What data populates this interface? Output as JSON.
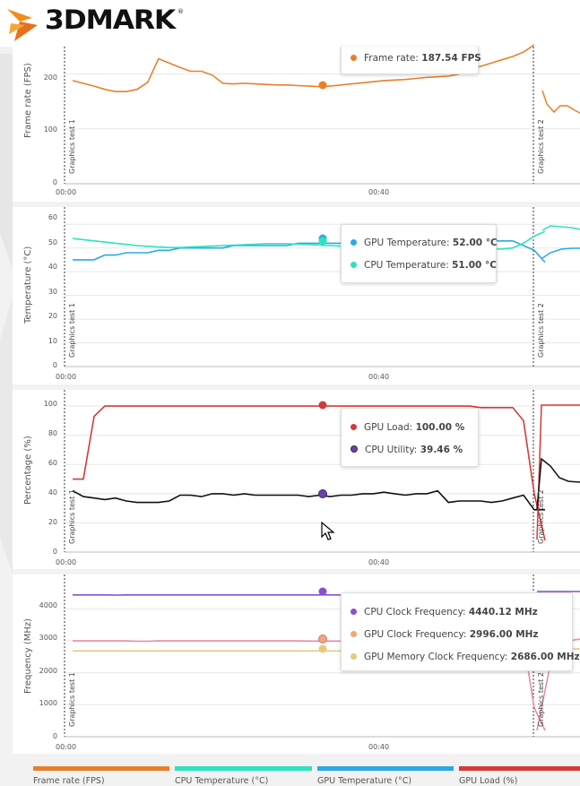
{
  "app": {
    "logo": "3DMARK",
    "registered": "®"
  },
  "colors": {
    "frame_rate": "#e8802a",
    "cpu_temp": "#2de2c0",
    "gpu_temp": "#29a9e8",
    "gpu_load": "#d23a3a",
    "cpu_util": "#111111",
    "cpu_clock": "#8a4fd0",
    "gpu_clock": "#e88aa0",
    "gpu_mem_clock": "#e7c97a"
  },
  "markers": {
    "test1": "Graphics test 1",
    "test2": "Graphics test 2"
  },
  "x_ticks": [
    "00:00",
    "00:40"
  ],
  "panels": {
    "frame_rate": {
      "ylabel": "Frame rate (FPS)",
      "yticks": [
        "200",
        "100",
        "0"
      ],
      "tooltip": [
        {
          "label": "Frame rate:",
          "value": "187.54 FPS"
        }
      ]
    },
    "temperature": {
      "ylabel": "Temperature (°C)",
      "yticks": [
        "60",
        "50",
        "40",
        "30",
        "20",
        "10",
        "0"
      ],
      "tooltip": [
        {
          "label": "GPU Temperature:",
          "value": "52.00 °C"
        },
        {
          "label": "CPU Temperature:",
          "value": "51.00 °C"
        }
      ]
    },
    "percentage": {
      "ylabel": "Percentage (%)",
      "yticks": [
        "100",
        "80",
        "60",
        "40",
        "20",
        "0"
      ],
      "tooltip": [
        {
          "label": "GPU Load:",
          "value": "100.00 %"
        },
        {
          "label": "CPU Utility:",
          "value": "39.46 %"
        }
      ]
    },
    "frequency": {
      "ylabel": "Frequency (MHz)",
      "yticks": [
        "4000",
        "3000",
        "2000",
        "1000",
        "0"
      ],
      "tooltip": [
        {
          "label": "CPU Clock Frequency:",
          "value": "4440.12 MHz"
        },
        {
          "label": "GPU Clock Frequency:",
          "value": "2996.00 MHz"
        },
        {
          "label": "GPU Memory Clock Frequency:",
          "value": "2686.00 MHz"
        }
      ]
    }
  },
  "legend": [
    {
      "label": "Frame rate (FPS)",
      "color": "#e8802a"
    },
    {
      "label": "CPU Temperature (°C)",
      "color": "#2de2c0"
    },
    {
      "label": "GPU Temperature (°C)",
      "color": "#29a9e8"
    },
    {
      "label": "GPU Load (%)",
      "color": "#d23a3a"
    }
  ],
  "chart_data": [
    {
      "type": "line",
      "ylabel": "Frame rate (FPS)",
      "ylim": [
        0,
        250
      ],
      "series": [
        {
          "name": "Frame rate",
          "values": [
            188,
            183,
            178,
            172,
            168,
            168,
            172,
            185,
            228,
            220,
            212,
            205,
            205,
            198,
            183,
            182,
            183,
            182,
            181,
            180,
            180,
            179,
            178,
            177,
            178,
            180,
            182,
            184,
            186,
            188,
            189,
            190,
            192,
            194,
            195,
            196,
            200,
            208,
            214,
            220,
            226,
            232,
            240,
            255
          ]
        }
      ]
    },
    {
      "type": "line",
      "ylabel": "Temperature (°C)",
      "ylim": [
        0,
        65
      ],
      "series": [
        {
          "name": "GPU Temperature",
          "values": [
            45,
            45,
            45,
            47,
            47,
            48,
            48,
            48,
            49,
            49,
            50,
            50,
            50,
            50,
            50,
            51,
            51,
            51,
            51,
            51,
            51,
            52,
            52,
            52,
            52,
            52,
            52,
            52,
            52,
            52,
            52,
            53,
            53,
            53,
            53,
            53,
            53,
            53,
            53,
            53,
            53,
            53,
            51,
            49,
            44
          ]
        },
        {
          "name": "CPU Temperature",
          "values": [
            54,
            53.5,
            53,
            52.5,
            52,
            51.5,
            51,
            50.7,
            50.4,
            50.2,
            50.2,
            50.4,
            50.6,
            50.8,
            51,
            51.2,
            51.4,
            51.6,
            51.8,
            51.8,
            51.8,
            51.6,
            51.4,
            51.2,
            51,
            50.8,
            50.6,
            50.4,
            50.2,
            50,
            50,
            49.8,
            49.6,
            49.5,
            49.5,
            49.5,
            49.5,
            49.5,
            49.5,
            49.5,
            49.6,
            50,
            52,
            55,
            57
          ]
        }
      ]
    },
    {
      "type": "line",
      "ylabel": "Percentage (%)",
      "ylim": [
        0,
        105
      ],
      "series": [
        {
          "name": "GPU Load",
          "values": [
            50,
            50,
            93,
            100,
            100,
            100,
            100,
            100,
            100,
            100,
            100,
            100,
            100,
            100,
            100,
            100,
            100,
            100,
            100,
            100,
            100,
            100,
            100,
            100,
            100,
            100,
            100,
            100,
            100,
            100,
            100,
            100,
            100,
            100,
            100,
            100,
            100,
            100,
            99,
            99,
            99,
            99,
            90,
            40,
            8
          ]
        },
        {
          "name": "CPU Utility",
          "values": [
            42,
            38,
            37,
            36,
            37,
            35,
            34,
            34,
            34,
            35,
            39,
            39,
            38,
            40,
            40,
            39,
            40,
            39,
            39,
            39,
            39,
            39,
            38,
            39,
            38,
            39,
            39,
            40,
            40,
            41,
            40,
            39,
            40,
            40,
            42,
            34,
            35,
            35,
            35,
            34,
            35,
            37,
            39,
            29,
            29
          ]
        }
      ]
    },
    {
      "type": "line",
      "ylabel": "Frequency (MHz)",
      "ylim": [
        0,
        4800
      ],
      "series": [
        {
          "name": "CPU Clock Frequency",
          "values": [
            4440,
            4440,
            4440,
            4440,
            4435,
            4440,
            4440,
            4440,
            4440,
            4440,
            4440,
            4440,
            4440,
            4440,
            4440,
            4440,
            4440,
            4440,
            4440,
            4440,
            4440,
            4440,
            4440,
            4440,
            4440,
            4440,
            4440,
            4440,
            4440,
            4440,
            4440,
            4440,
            4440,
            4440,
            4440,
            4440,
            4440,
            4440,
            4440,
            4440,
            4440,
            4440,
            4440,
            4440,
            4440
          ]
        },
        {
          "name": "GPU Clock Frequency",
          "values": [
            3000,
            3000,
            3000,
            3000,
            3000,
            3000,
            2990,
            2990,
            3000,
            3000,
            3000,
            3000,
            3000,
            3000,
            3000,
            3000,
            3000,
            3000,
            3000,
            3000,
            3000,
            3000,
            2996,
            2996,
            2996,
            2996,
            2996,
            2996,
            2996,
            2996,
            2996,
            2996,
            2996,
            2996,
            2996,
            2996,
            2996,
            2996,
            2996,
            2996,
            2996,
            2996,
            2996,
            900,
            200
          ]
        },
        {
          "name": "GPU Memory Clock Frequency",
          "values": [
            2686,
            2686,
            2686,
            2686,
            2686,
            2686,
            2686,
            2686,
            2686,
            2686,
            2686,
            2686,
            2686,
            2686,
            2686,
            2686,
            2686,
            2686,
            2686,
            2686,
            2686,
            2686,
            2686,
            2686,
            2686,
            2686,
            2686,
            2686,
            2686,
            2686,
            2686,
            2686,
            2686,
            2686,
            2686,
            2686,
            2686,
            2686,
            2686,
            2686,
            2686,
            2686,
            2686,
            2686,
            2686
          ]
        }
      ]
    }
  ]
}
